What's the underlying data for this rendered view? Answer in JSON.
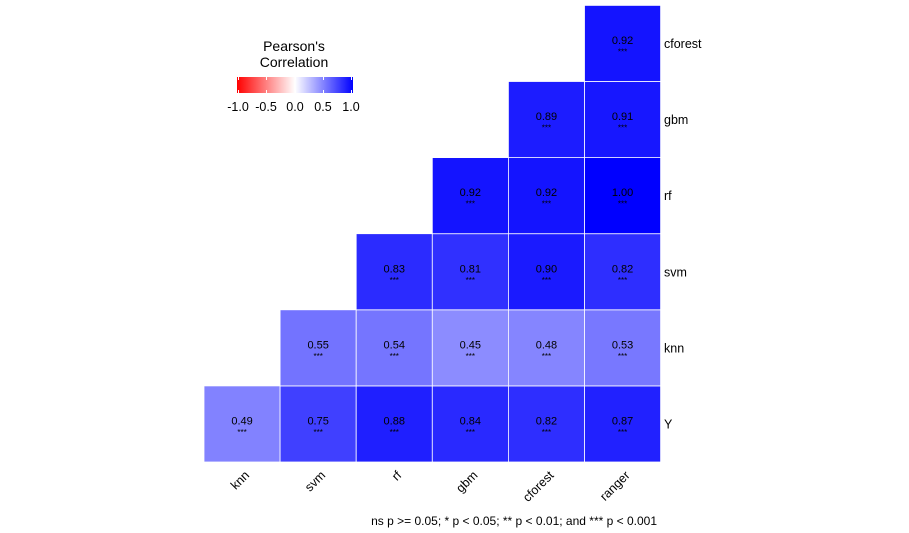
{
  "legend": {
    "title_line1": "Pearson's",
    "title_line2": "Correlation",
    "ticks": [
      "-1.0",
      "-0.5",
      "0.0",
      "0.5",
      "1.0"
    ],
    "colors": {
      "low": "#ff0000",
      "mid": "#ffffff",
      "high": "#0000ff"
    }
  },
  "caption": "ns p >= 0.05; * p < 0.05; ** p < 0.01; and *** p < 0.001",
  "chart_data": {
    "type": "heatmap",
    "title": "",
    "x_categories": [
      "knn",
      "svm",
      "rf",
      "gbm",
      "cforest",
      "ranger"
    ],
    "y_categories": [
      "Y",
      "knn",
      "svm",
      "rf",
      "gbm",
      "cforest"
    ],
    "value_range": [
      -1.0,
      1.0
    ],
    "grid": false,
    "legend_position": "top-left",
    "cells": [
      {
        "x": "knn",
        "y": "Y",
        "value": 0.49,
        "label": "0.49",
        "sig": "***"
      },
      {
        "x": "svm",
        "y": "Y",
        "value": 0.75,
        "label": "0.75",
        "sig": "***"
      },
      {
        "x": "rf",
        "y": "Y",
        "value": 0.88,
        "label": "0.88",
        "sig": "***"
      },
      {
        "x": "gbm",
        "y": "Y",
        "value": 0.84,
        "label": "0.84",
        "sig": "***"
      },
      {
        "x": "cforest",
        "y": "Y",
        "value": 0.82,
        "label": "0.82",
        "sig": "***"
      },
      {
        "x": "ranger",
        "y": "Y",
        "value": 0.87,
        "label": "0.87",
        "sig": "***"
      },
      {
        "x": "svm",
        "y": "knn",
        "value": 0.55,
        "label": "0.55",
        "sig": "***"
      },
      {
        "x": "rf",
        "y": "knn",
        "value": 0.54,
        "label": "0.54",
        "sig": "***"
      },
      {
        "x": "gbm",
        "y": "knn",
        "value": 0.45,
        "label": "0.45",
        "sig": "***"
      },
      {
        "x": "cforest",
        "y": "knn",
        "value": 0.48,
        "label": "0.48",
        "sig": "***"
      },
      {
        "x": "ranger",
        "y": "knn",
        "value": 0.53,
        "label": "0.53",
        "sig": "***"
      },
      {
        "x": "rf",
        "y": "svm",
        "value": 0.83,
        "label": "0.83",
        "sig": "***"
      },
      {
        "x": "gbm",
        "y": "svm",
        "value": 0.81,
        "label": "0.81",
        "sig": "***"
      },
      {
        "x": "cforest",
        "y": "svm",
        "value": 0.9,
        "label": "0.90",
        "sig": "***"
      },
      {
        "x": "ranger",
        "y": "svm",
        "value": 0.82,
        "label": "0.82",
        "sig": "***"
      },
      {
        "x": "gbm",
        "y": "rf",
        "value": 0.92,
        "label": "0.92",
        "sig": "***"
      },
      {
        "x": "cforest",
        "y": "rf",
        "value": 0.92,
        "label": "0.92",
        "sig": "***"
      },
      {
        "x": "ranger",
        "y": "rf",
        "value": 1.0,
        "label": "1.00",
        "sig": "***"
      },
      {
        "x": "cforest",
        "y": "gbm",
        "value": 0.89,
        "label": "0.89",
        "sig": "***"
      },
      {
        "x": "ranger",
        "y": "gbm",
        "value": 0.91,
        "label": "0.91",
        "sig": "***"
      },
      {
        "x": "ranger",
        "y": "cforest",
        "value": 0.92,
        "label": "0.92",
        "sig": "***"
      }
    ]
  }
}
